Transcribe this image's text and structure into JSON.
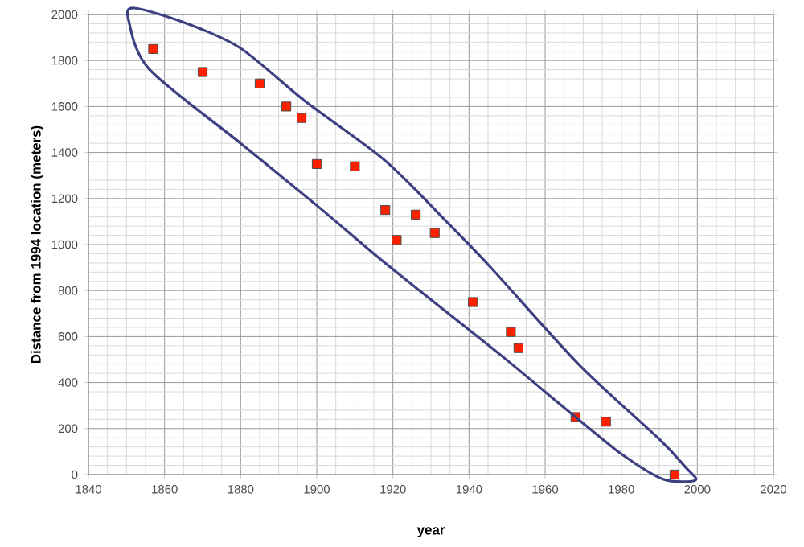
{
  "chart_data": {
    "type": "scatter",
    "xlabel": "year",
    "ylabel": "Distance from 1994 location (meters)",
    "x": [
      1857,
      1870,
      1885,
      1892,
      1896,
      1900,
      1910,
      1918,
      1921,
      1926,
      1931,
      1941,
      1951,
      1953,
      1968,
      1976,
      1994
    ],
    "series": [
      {
        "color": "#ff2000",
        "values": [
          1850,
          1750,
          1700,
          1600,
          1550,
          1350,
          1340,
          1150,
          1020,
          1130,
          1050,
          750,
          620,
          550,
          250,
          230,
          0
        ]
      }
    ],
    "xlim": [
      1840,
      2020
    ],
    "xticks": [
      1840,
      1860,
      1880,
      1900,
      1920,
      1940,
      1960,
      1980,
      2000,
      2020
    ],
    "ylim": [
      0,
      2000
    ],
    "yticks": [
      0,
      200,
      400,
      600,
      800,
      1000,
      1200,
      1400,
      1600,
      1800,
      2000
    ],
    "grid": true,
    "marker": "square"
  }
}
